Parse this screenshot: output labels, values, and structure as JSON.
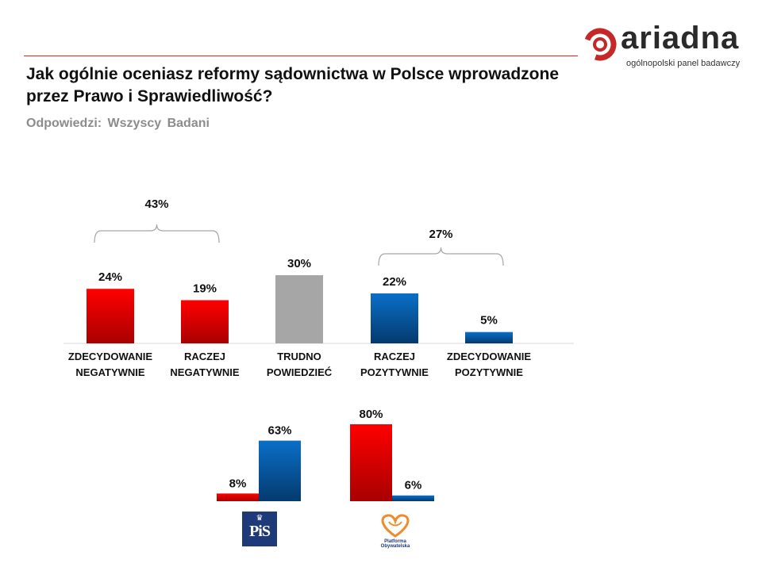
{
  "header": {
    "title": "Jak ogólnie oceniasz reformy sądownictwa w Polsce wprowadzone przez Prawo i Sprawiedliwość?",
    "subtitle": "Odpowiedzi:  Wszyscy  Badani"
  },
  "logo": {
    "word": "ariadna",
    "tagline": "ogólnopolski panel badawczy",
    "accent_color": "#c62828"
  },
  "party_logos": {
    "pis": "PiS",
    "po": "Platforma Obywatelska"
  },
  "colors": {
    "negative": "#e00000",
    "neutral": "#a6a6a6",
    "positive": "#0a63b4",
    "neg_total_text": "#ff0000",
    "pos_total_text": "#0070c0"
  },
  "chart_data": [
    {
      "type": "bar",
      "categories": [
        [
          "ZDECYDOWANIE",
          "NEGATYWNIE"
        ],
        [
          "RACZEJ",
          "NEGATYWNIE"
        ],
        [
          "TRUDNO",
          "POWIEDZIEĆ"
        ],
        [
          "RACZEJ",
          "POZYTYWNIE"
        ],
        [
          "ZDECYDOWANIE",
          "POZYTYWNIE"
        ]
      ],
      "values": [
        24,
        19,
        30,
        22,
        5
      ],
      "value_labels": [
        "24%",
        "19%",
        "30%",
        "22%",
        "5%"
      ],
      "bar_colors": [
        "negative",
        "negative",
        "neutral",
        "positive",
        "positive"
      ],
      "ylim": [
        0,
        30
      ],
      "grid": false,
      "annotations": [
        {
          "label": "43%",
          "spans": [
            0,
            1
          ],
          "color": "neg_total_text"
        },
        {
          "label": "27%",
          "spans": [
            3,
            4
          ],
          "color": "pos_total_text"
        }
      ]
    },
    {
      "type": "bar",
      "categories": [
        "PiS",
        "Platforma Obywatelska"
      ],
      "series": [
        {
          "color": "negative",
          "values": [
            8,
            80
          ],
          "value_labels": [
            "8%",
            "80%"
          ]
        },
        {
          "color": "positive",
          "values": [
            63,
            6
          ],
          "value_labels": [
            "63%",
            "6%"
          ]
        }
      ],
      "ylim": [
        0,
        80
      ],
      "grid": false
    }
  ]
}
